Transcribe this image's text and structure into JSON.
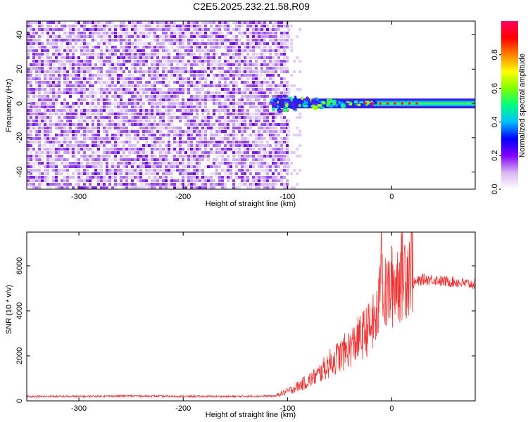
{
  "title": "C2E5.2025.232.21.58.R09",
  "chart_data": [
    {
      "type": "heatmap",
      "xlabel": "Height of straight line (km)",
      "ylabel": "Frequency (Hz)",
      "xlim": [
        -350,
        80
      ],
      "ylim": [
        -50,
        48
      ],
      "xticks": [
        -300,
        -200,
        -100,
        0
      ],
      "xtick_labels": [
        "-300",
        "-200",
        "-100",
        "0"
      ],
      "yticks": [
        -40,
        -20,
        0,
        20,
        40
      ],
      "ytick_labels": [
        "-40",
        "-20",
        "0",
        "20",
        "40"
      ],
      "noise_region_x": [
        -350,
        -100
      ],
      "signal_line_freq": 0,
      "signal_onset_x": -115,
      "colorbar": {
        "label": "Normalized spectral amplitude",
        "range": [
          0,
          1
        ],
        "ticks": [
          0.0,
          0.2,
          0.4,
          0.6,
          0.8
        ],
        "tick_labels": [
          "0.0",
          "0.2",
          "0.4",
          "0.6",
          "0.8"
        ],
        "colors": [
          "#ffffff",
          "#d8b4f0",
          "#8000ff",
          "#0000ff",
          "#00c0ff",
          "#00ff80",
          "#80ff00",
          "#ffff00",
          "#ff8000",
          "#ff0000",
          "#ff0060"
        ]
      }
    },
    {
      "type": "line",
      "xlabel": "Height of straight line (km)",
      "ylabel": "SNR (10 * v/v)",
      "xlim": [
        -350,
        80
      ],
      "ylim": [
        0,
        7500
      ],
      "xticks": [
        -300,
        -200,
        -100,
        0
      ],
      "xtick_labels": [
        "-300",
        "-200",
        "-100",
        "0"
      ],
      "yticks": [
        0,
        2000,
        4000,
        6000
      ],
      "ytick_labels": [
        "0",
        "2000",
        "4000",
        "6000"
      ],
      "series": [
        {
          "name": "SNR",
          "color": "#ee3333",
          "x": [
            -350,
            -300,
            -250,
            -200,
            -150,
            -110,
            -100,
            -90,
            -80,
            -70,
            -60,
            -50,
            -40,
            -30,
            -20,
            -15,
            -12,
            -10,
            -8,
            0,
            10,
            20,
            30,
            40,
            50,
            60,
            70,
            80
          ],
          "y": [
            200,
            200,
            220,
            200,
            200,
            220,
            350,
            550,
            750,
            1000,
            1400,
            1700,
            2000,
            2400,
            2800,
            3100,
            3500,
            7500,
            3800,
            4300,
            4800,
            5200,
            5400,
            5400,
            5300,
            5300,
            5200,
            5200
          ]
        }
      ]
    }
  ]
}
